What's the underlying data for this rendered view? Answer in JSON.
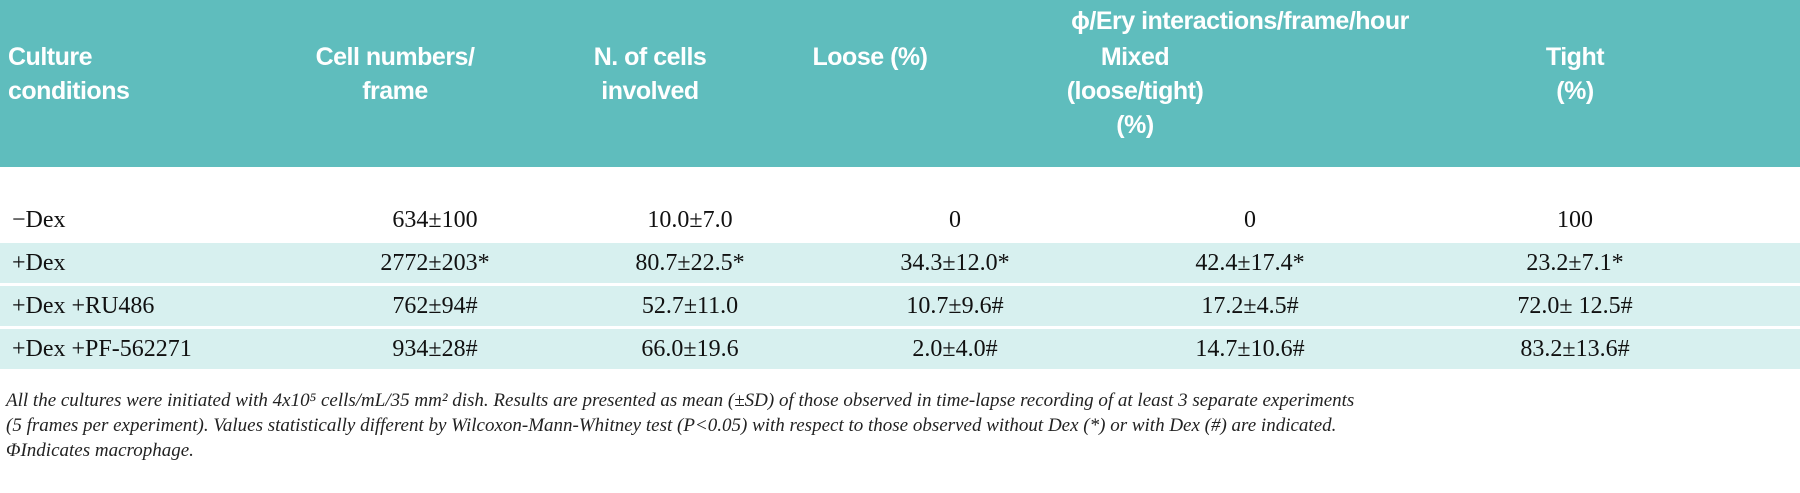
{
  "header": {
    "culture": [
      "Culture",
      "conditions"
    ],
    "cell_numbers": [
      "Cell numbers/",
      "frame"
    ],
    "n_cells": [
      "N. of cells",
      "involved"
    ],
    "group_title": "ϕ/Ery interactions/frame/hour",
    "loose": "Loose (%)",
    "mixed": [
      "Mixed",
      "(loose/tight)",
      "(%)"
    ],
    "tight": [
      "Tight",
      "(%)"
    ]
  },
  "rows": [
    {
      "label": "−Dex",
      "cell_numbers": "634±100",
      "n_cells": "10.0±7.0",
      "loose": "0",
      "mixed": "0",
      "tight": "100"
    },
    {
      "label": "+Dex",
      "cell_numbers": "2772±203*",
      "n_cells": "80.7±22.5*",
      "loose": "34.3±12.0*",
      "mixed": "42.4±17.4*",
      "tight": "23.2±7.1*"
    },
    {
      "label": "+Dex +RU486",
      "cell_numbers": "762±94#",
      "n_cells": "52.7±11.0",
      "loose": "10.7±9.6#",
      "mixed": "17.2±4.5#",
      "tight": "72.0±  12.5#"
    },
    {
      "label": "+Dex +PF-562271",
      "cell_numbers": "934±28#",
      "n_cells": "66.0±19.6",
      "loose": "2.0±4.0#",
      "mixed": "14.7±10.6#",
      "tight": "83.2±13.6#"
    }
  ],
  "footnote": [
    "All the cultures were initiated with 4x10⁵ cells/mL/35 mm² dish. Results are presented as mean (±SD) of those observed in time-lapse recording of at least 3 separate experiments",
    "(5 frames per experiment). Values statistically different by Wilcoxon-Mann-Whitney test (P<0.05) with respect to those observed without Dex (*) or with Dex (#) are indicated.",
    "ΦIndicates macrophage."
  ]
}
